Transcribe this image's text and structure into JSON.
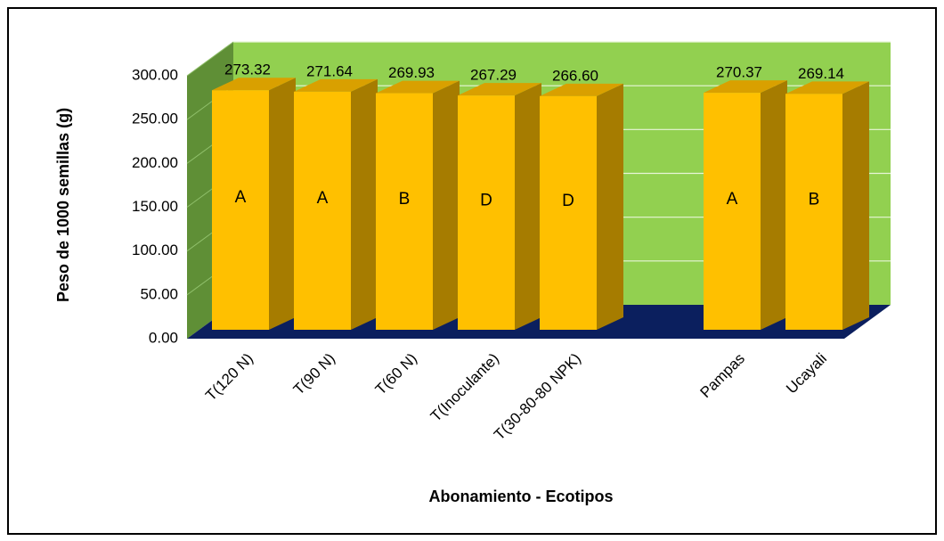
{
  "chart_data": {
    "type": "bar3d",
    "x_label": "Abonamiento - Ecotipos",
    "y_label": "Peso de 1000 semillas (g)",
    "categories": [
      "T(120 N)",
      "T(90 N)",
      "T(60 N)",
      "T(Inoculante)",
      "T(30-80-80 NPK)",
      null,
      "Pampas",
      "Ucayali"
    ],
    "values": [
      273.32,
      271.64,
      269.93,
      267.29,
      266.6,
      null,
      270.37,
      269.14
    ],
    "value_labels": [
      "273.32",
      "271.64",
      "269.93",
      "267.29",
      "266.60",
      null,
      "270.37",
      "269.14"
    ],
    "letters": [
      "A",
      "A",
      "B",
      "D",
      "D",
      null,
      "A",
      "B"
    ],
    "color": "#ffc000",
    "wall_color": "#92d050",
    "floor_color": "#0b1f5e",
    "ylim": [
      0,
      300
    ],
    "yticks": [
      {
        "value": 0,
        "label": "0.00"
      },
      {
        "value": 50,
        "label": "50.00"
      },
      {
        "value": 100,
        "label": "100.00"
      },
      {
        "value": 150,
        "label": "150.00"
      },
      {
        "value": 200,
        "label": "200.00"
      },
      {
        "value": 250,
        "label": "250.00"
      },
      {
        "value": 300,
        "label": "300.00"
      }
    ],
    "grid": true
  }
}
